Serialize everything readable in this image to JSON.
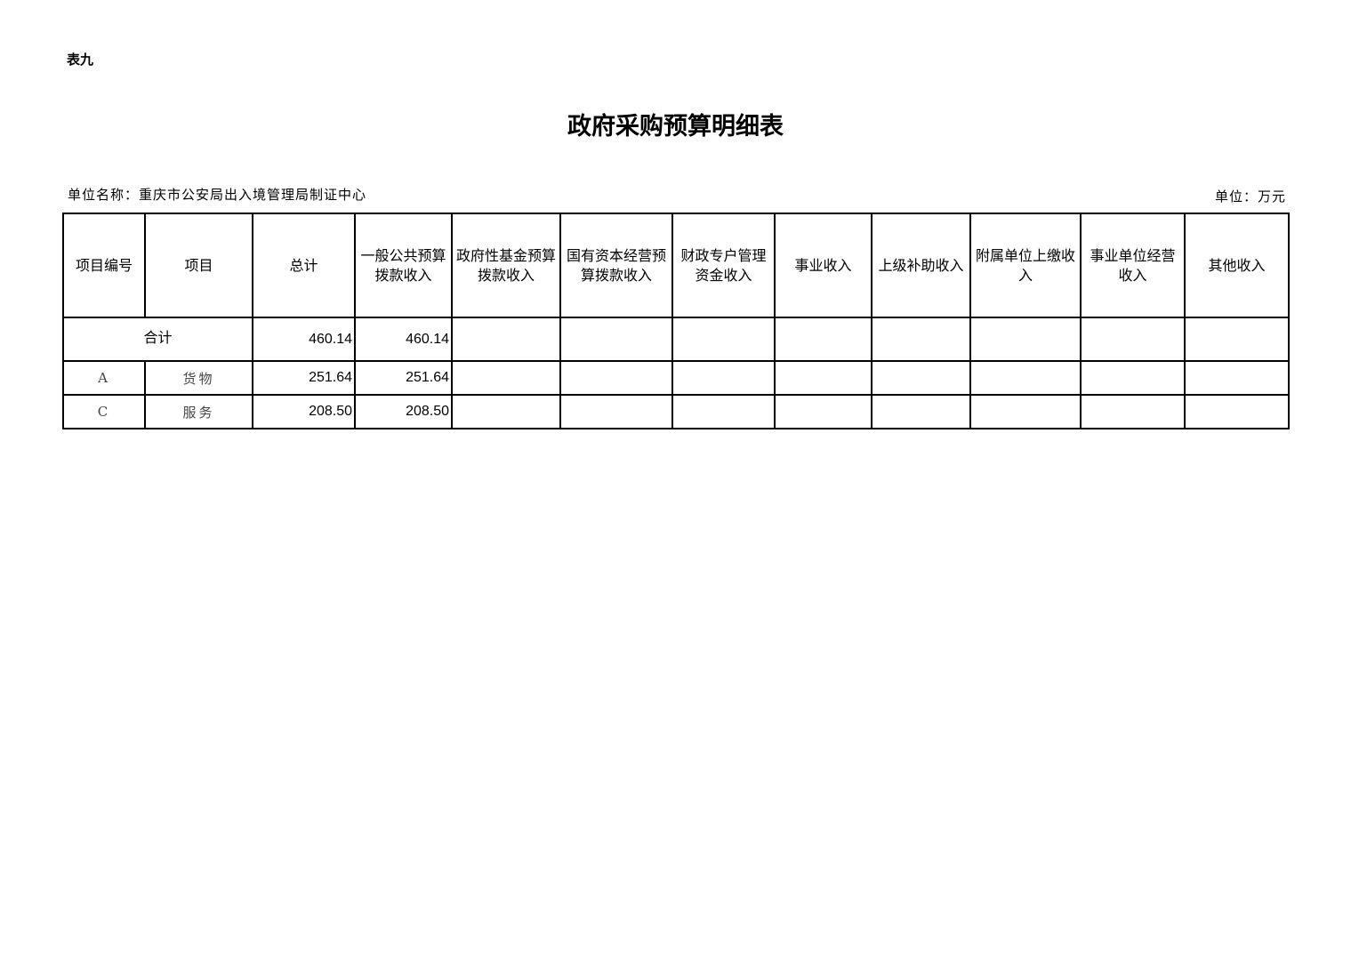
{
  "table_tag": "表九",
  "title": "政府采购预算明细表",
  "unit_name": "单位名称：重庆市公安局出入境管理局制证中心",
  "unit": "单位：万元",
  "columns": [
    "项目编号",
    "项目",
    "总计",
    "一般公共预算拨款收入",
    "政府性基金预算拨款收入",
    "国有资本经营预算拨款收入",
    "财政专户管理资金收入",
    "事业收入",
    "上级补助收入",
    "附属单位上缴收入",
    "事业单位经营收入",
    "其他收入"
  ],
  "total_row": {
    "label": "合计",
    "values": [
      "460.14",
      "460.14",
      "",
      "",
      "",
      "",
      "",
      "",
      "",
      "",
      ""
    ]
  },
  "rows": [
    {
      "code": "A",
      "item": "货物",
      "values": [
        "251.64",
        "251.64",
        "",
        "",
        "",
        "",
        "",
        "",
        "",
        "",
        ""
      ]
    },
    {
      "code": "C",
      "item": "服务",
      "values": [
        "208.50",
        "208.50",
        "",
        "",
        "",
        "",
        "",
        "",
        "",
        "",
        ""
      ]
    }
  ]
}
